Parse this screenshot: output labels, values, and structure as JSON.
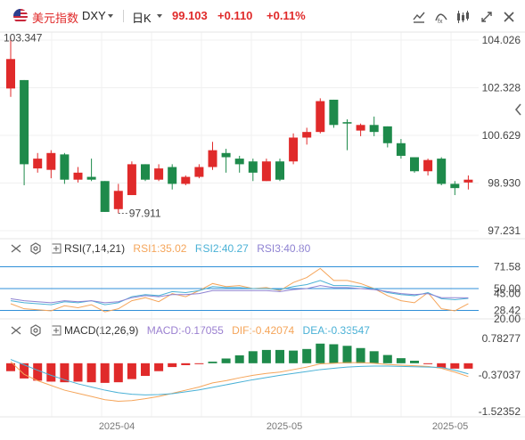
{
  "header": {
    "symbol_name": "美元指数",
    "symbol_code": "DXY",
    "period": "日K",
    "last": "99.103",
    "change": "+0.110",
    "change_pct": "+0.11%"
  },
  "colors": {
    "up": "#e02a2a",
    "down": "#1e8a4b",
    "rsi1": "#f5a55a",
    "rsi2": "#4ab1d6",
    "rsi3": "#8e82d2",
    "dif": "#f5a55a",
    "dea": "#4ab1d6",
    "ref_line": "#2f8fd8"
  },
  "icons": [
    "us-flag-icon",
    "chart-type-icon",
    "indicator-icon",
    "candle-style-icon",
    "fullscreen-icon",
    "close-icon",
    "collapse-arrow-icon",
    "gear-icon"
  ],
  "main_pane": {
    "y_ticks": [
      "104.026",
      "102.328",
      "100.629",
      "98.930",
      "97.231"
    ],
    "high_label": "103.347",
    "low_label": "97.911"
  },
  "rsi_pane": {
    "name": "RSI(7,14,21)",
    "rsi1": "RSI1:35.02",
    "rsi2": "RSI2:40.27",
    "rsi3": "RSI3:40.80",
    "y_ticks": [
      "71.58",
      "50.00",
      "45.00",
      "28.42",
      "20.00"
    ]
  },
  "macd_pane": {
    "name": "MACD(12,26,9)",
    "macd": "MACD:-0.17055",
    "dif": "DIF:-0.42074",
    "dea": "DEA:-0.33547",
    "y_ticks": [
      "0.78277",
      "-0.37037",
      "-1.52352"
    ]
  },
  "x_axis": {
    "labels": [
      "2025-04",
      "2025-05",
      "2025-05"
    ]
  },
  "chart_data": [
    {
      "type": "candlestick",
      "title": "美元指数 DXY 日K",
      "ylim": [
        97.231,
        104.026
      ],
      "candles": [
        {
          "o": 102.3,
          "h": 104.1,
          "l": 102.0,
          "c": 103.35
        },
        {
          "o": 102.6,
          "h": 102.6,
          "l": 98.85,
          "c": 99.6
        },
        {
          "o": 99.45,
          "h": 100.0,
          "l": 99.3,
          "c": 99.8
        },
        {
          "o": 99.4,
          "h": 100.1,
          "l": 99.1,
          "c": 100.0
        },
        {
          "o": 99.95,
          "h": 100.0,
          "l": 98.9,
          "c": 99.05
        },
        {
          "o": 99.05,
          "h": 99.5,
          "l": 98.95,
          "c": 99.3
        },
        {
          "o": 99.15,
          "h": 99.8,
          "l": 99.0,
          "c": 99.05
        },
        {
          "o": 99.0,
          "h": 99.0,
          "l": 97.9,
          "c": 97.9
        },
        {
          "o": 98.0,
          "h": 98.9,
          "l": 97.85,
          "c": 98.65
        },
        {
          "o": 98.5,
          "h": 99.7,
          "l": 98.5,
          "c": 99.6
        },
        {
          "o": 99.6,
          "h": 99.6,
          "l": 99.0,
          "c": 99.05
        },
        {
          "o": 99.05,
          "h": 99.6,
          "l": 99.0,
          "c": 99.45
        },
        {
          "o": 99.5,
          "h": 99.6,
          "l": 98.7,
          "c": 98.9
        },
        {
          "o": 98.9,
          "h": 99.2,
          "l": 98.85,
          "c": 99.15
        },
        {
          "o": 99.15,
          "h": 99.6,
          "l": 99.1,
          "c": 99.5
        },
        {
          "o": 99.5,
          "h": 100.4,
          "l": 99.4,
          "c": 100.1
        },
        {
          "o": 100.0,
          "h": 100.15,
          "l": 99.3,
          "c": 99.85
        },
        {
          "o": 99.8,
          "h": 99.9,
          "l": 99.3,
          "c": 99.6
        },
        {
          "o": 99.7,
          "h": 99.8,
          "l": 99.0,
          "c": 99.3
        },
        {
          "o": 99.0,
          "h": 99.8,
          "l": 99.0,
          "c": 99.7
        },
        {
          "o": 99.7,
          "h": 99.8,
          "l": 99.0,
          "c": 99.05
        },
        {
          "o": 99.7,
          "h": 100.7,
          "l": 99.6,
          "c": 100.55
        },
        {
          "o": 100.55,
          "h": 100.9,
          "l": 100.3,
          "c": 100.75
        },
        {
          "o": 100.75,
          "h": 101.95,
          "l": 100.7,
          "c": 101.85
        },
        {
          "o": 101.9,
          "h": 101.9,
          "l": 100.9,
          "c": 101.0
        },
        {
          "o": 101.1,
          "h": 101.2,
          "l": 100.1,
          "c": 101.05
        },
        {
          "o": 100.8,
          "h": 101.05,
          "l": 100.6,
          "c": 101.0
        },
        {
          "o": 101.0,
          "h": 101.3,
          "l": 100.6,
          "c": 100.75
        },
        {
          "o": 100.95,
          "h": 100.95,
          "l": 100.2,
          "c": 100.35
        },
        {
          "o": 100.35,
          "h": 100.5,
          "l": 99.8,
          "c": 99.9
        },
        {
          "o": 99.85,
          "h": 99.85,
          "l": 99.3,
          "c": 99.35
        },
        {
          "o": 99.35,
          "h": 99.8,
          "l": 99.2,
          "c": 99.75
        },
        {
          "o": 99.8,
          "h": 99.85,
          "l": 98.85,
          "c": 98.9
        },
        {
          "o": 98.9,
          "h": 99.0,
          "l": 98.5,
          "c": 98.75
        },
        {
          "o": 98.95,
          "h": 99.2,
          "l": 98.7,
          "c": 99.05
        }
      ]
    },
    {
      "type": "line",
      "title": "RSI(7,14,21)",
      "ylim": [
        20,
        80
      ],
      "reference_lines": [
        71.58,
        50.0,
        28.42
      ],
      "series": [
        {
          "name": "RSI1",
          "values": [
            35,
            30,
            29,
            28,
            33,
            31,
            34,
            27,
            30,
            38,
            41,
            37,
            45,
            42,
            48,
            55,
            52,
            53,
            50,
            51,
            48,
            56,
            61,
            70,
            58,
            58,
            55,
            50,
            43,
            38,
            36,
            46,
            30,
            28,
            35.02
          ]
        },
        {
          "name": "RSI2",
          "values": [
            38,
            36,
            35,
            34,
            37,
            36,
            38,
            34,
            36,
            42,
            44,
            43,
            47,
            46,
            48,
            52,
            51,
            51,
            50,
            50,
            49,
            52,
            54,
            58,
            53,
            53,
            52,
            50,
            46,
            44,
            43,
            46,
            40,
            39,
            40.27
          ]
        },
        {
          "name": "RSI3",
          "values": [
            40,
            38,
            37,
            36,
            38,
            37,
            38,
            36,
            37,
            41,
            43,
            42,
            44,
            44,
            45,
            48,
            48,
            48,
            48,
            48,
            47,
            49,
            50,
            53,
            51,
            51,
            50,
            49,
            47,
            45,
            44,
            45,
            41,
            41,
            40.8
          ]
        }
      ]
    },
    {
      "type": "bar",
      "title": "MACD(12,26,9)",
      "ylim": [
        -1.52352,
        0.78277
      ],
      "series": [
        {
          "name": "MACD",
          "values": [
            -0.25,
            -0.48,
            -0.55,
            -0.58,
            -0.6,
            -0.58,
            -0.6,
            -0.62,
            -0.6,
            -0.5,
            -0.4,
            -0.25,
            -0.12,
            -0.06,
            -0.02,
            0.05,
            0.15,
            0.25,
            0.38,
            0.42,
            0.42,
            0.4,
            0.45,
            0.62,
            0.6,
            0.55,
            0.48,
            0.38,
            0.26,
            0.16,
            0.08,
            -0.02,
            -0.15,
            -0.17,
            -0.17055
          ]
        },
        {
          "name": "DIF",
          "values": [
            0.05,
            -0.35,
            -0.55,
            -0.7,
            -0.85,
            -0.95,
            -1.05,
            -1.15,
            -1.2,
            -1.18,
            -1.12,
            -1.05,
            -0.95,
            -0.85,
            -0.75,
            -0.62,
            -0.55,
            -0.46,
            -0.38,
            -0.32,
            -0.28,
            -0.2,
            -0.12,
            -0.02,
            0.0,
            0.02,
            0.02,
            0.0,
            -0.04,
            -0.06,
            -0.08,
            -0.1,
            -0.16,
            -0.28,
            -0.42074
          ]
        },
        {
          "name": "DEA",
          "values": [
            0.12,
            -0.05,
            -0.22,
            -0.38,
            -0.52,
            -0.65,
            -0.75,
            -0.85,
            -0.93,
            -0.98,
            -1.0,
            -0.99,
            -0.96,
            -0.9,
            -0.84,
            -0.76,
            -0.68,
            -0.6,
            -0.52,
            -0.45,
            -0.38,
            -0.32,
            -0.26,
            -0.2,
            -0.16,
            -0.12,
            -0.1,
            -0.09,
            -0.09,
            -0.1,
            -0.11,
            -0.12,
            -0.13,
            -0.22,
            -0.33547
          ]
        }
      ]
    }
  ]
}
